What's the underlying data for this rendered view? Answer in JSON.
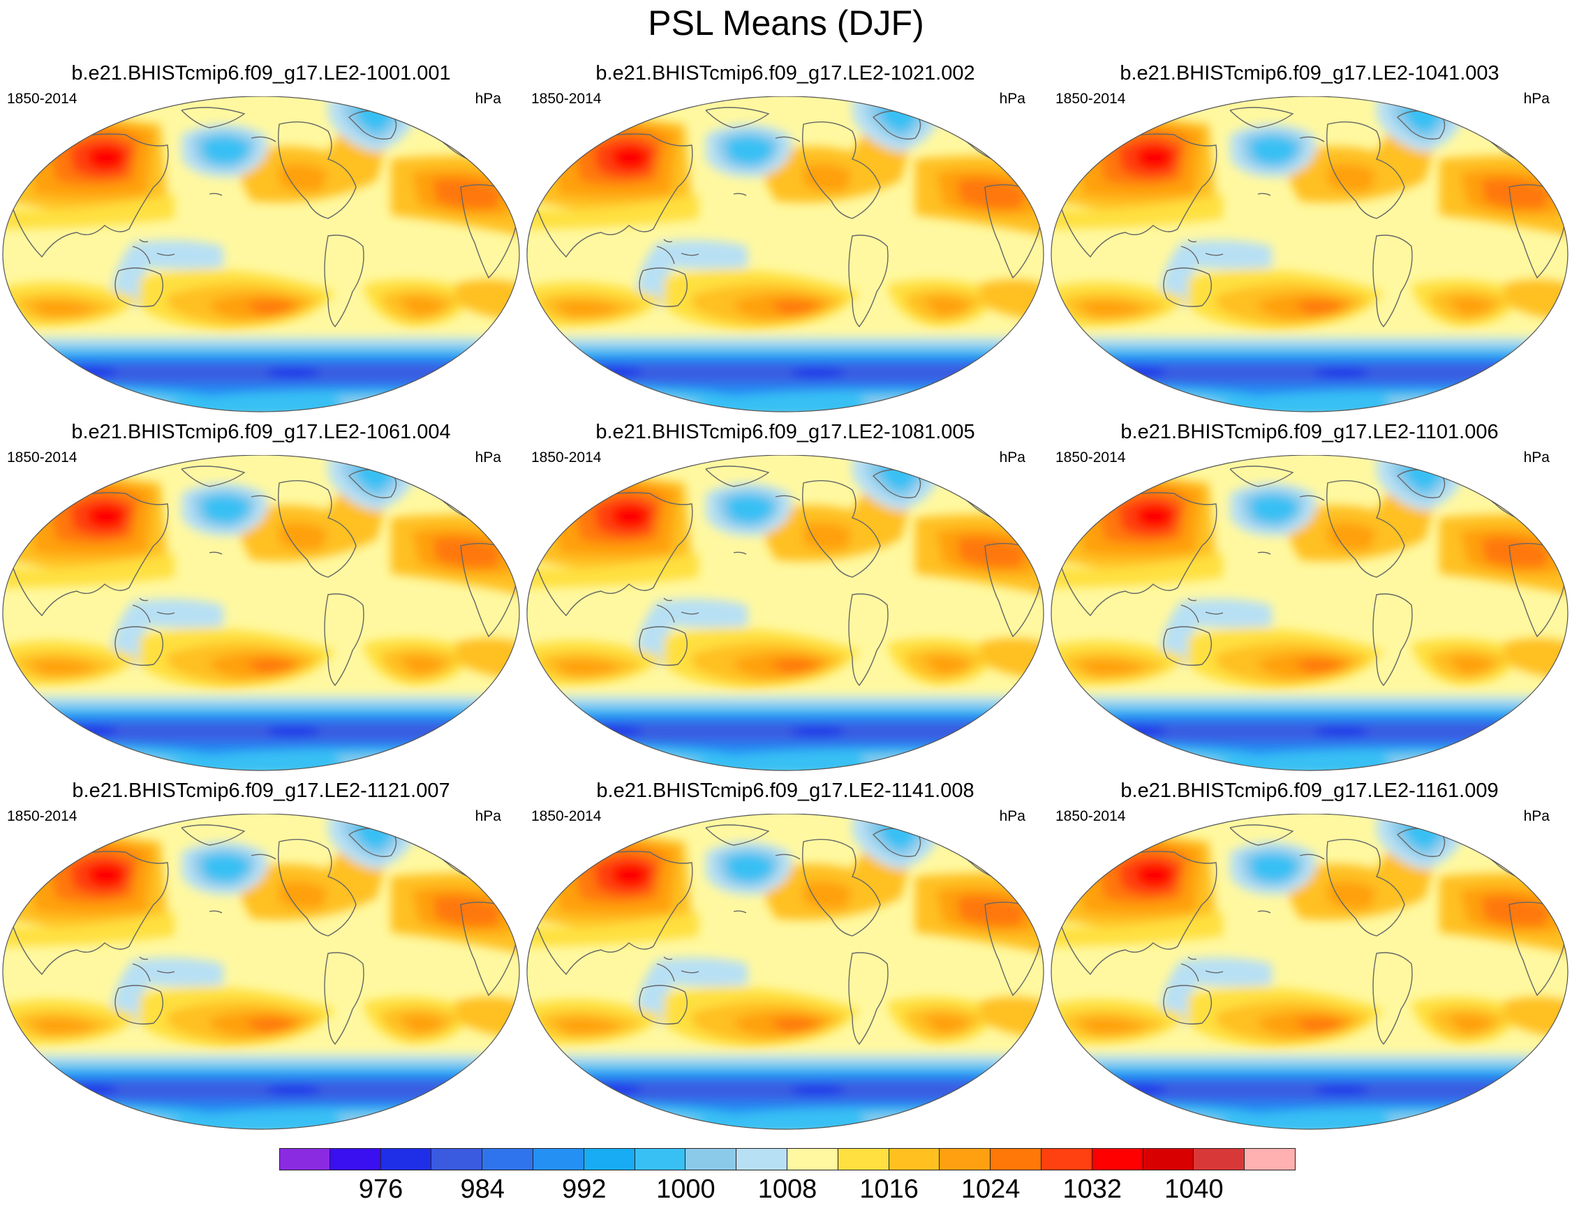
{
  "title": "PSL Means (DJF)",
  "panels": [
    {
      "title": "b.e21.BHISTcmip6.f09_g17.LE2-1001.001",
      "period": "1850-2014",
      "units": "hPa"
    },
    {
      "title": "b.e21.BHISTcmip6.f09_g17.LE2-1021.002",
      "period": "1850-2014",
      "units": "hPa"
    },
    {
      "title": "b.e21.BHISTcmip6.f09_g17.LE2-1041.003",
      "period": "1850-2014",
      "units": "hPa"
    },
    {
      "title": "b.e21.BHISTcmip6.f09_g17.LE2-1061.004",
      "period": "1850-2014",
      "units": "hPa"
    },
    {
      "title": "b.e21.BHISTcmip6.f09_g17.LE2-1081.005",
      "period": "1850-2014",
      "units": "hPa"
    },
    {
      "title": "b.e21.BHISTcmip6.f09_g17.LE2-1101.006",
      "period": "1850-2014",
      "units": "hPa"
    },
    {
      "title": "b.e21.BHISTcmip6.f09_g17.LE2-1121.007",
      "period": "1850-2014",
      "units": "hPa"
    },
    {
      "title": "b.e21.BHISTcmip6.f09_g17.LE2-1141.008",
      "period": "1850-2014",
      "units": "hPa"
    },
    {
      "title": "b.e21.BHISTcmip6.f09_g17.LE2-1161.009",
      "period": "1850-2014",
      "units": "hPa"
    }
  ],
  "colorbar": {
    "colors": [
      "#8a2be2",
      "#3a0ff0",
      "#1f2fe8",
      "#3a5ae0",
      "#2f74ec",
      "#2490f4",
      "#18acf4",
      "#38c0f4",
      "#8ccaea",
      "#b8e0f4",
      "#fff8a0",
      "#ffe040",
      "#ffc020",
      "#ffa010",
      "#ff7808",
      "#ff4010",
      "#ff0000",
      "#d80000",
      "#d83838",
      "#ffb0b0"
    ],
    "labels": [
      "976",
      "984",
      "992",
      "1000",
      "1008",
      "1016",
      "1024",
      "1032",
      "1040"
    ],
    "label_start_boundary": 2,
    "label_step": 2
  }
}
